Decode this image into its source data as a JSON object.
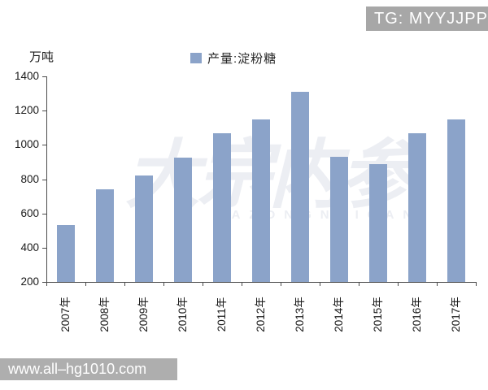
{
  "badge": {
    "text": "TG: MYYJJPP"
  },
  "watermark": {
    "text": "大宗内参",
    "subtext": "DAZONGNEICAN"
  },
  "chart": {
    "unit_label": "万吨",
    "legend_label": "产量:淀粉糖"
  },
  "chart_data": {
    "type": "bar",
    "title": "",
    "xlabel": "",
    "ylabel": "万吨",
    "categories": [
      "2007年",
      "2008年",
      "2009年",
      "2010年",
      "2011年",
      "2012年",
      "2013年",
      "2014年",
      "2015年",
      "2016年",
      "2017年"
    ],
    "values": [
      530,
      740,
      820,
      925,
      1070,
      1150,
      1310,
      930,
      890,
      1070,
      1150
    ],
    "ylim": [
      200,
      1400
    ],
    "yticks": [
      200,
      400,
      600,
      800,
      1000,
      1200,
      1400
    ],
    "legend": [
      "产量:淀粉糖"
    ],
    "legend_position": "top",
    "bar_color": "#8ba3c9",
    "axis_color": "#4d4d4d",
    "grid": false
  },
  "footer": {
    "url": "www.all–hg1010.com"
  }
}
